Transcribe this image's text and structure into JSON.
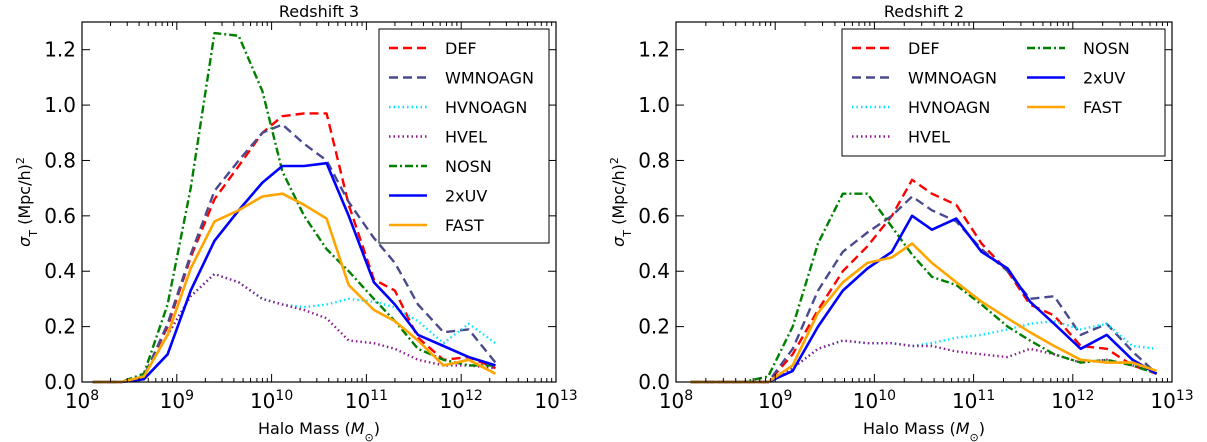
{
  "chart_data": [
    {
      "type": "line",
      "title": "Redshift 3",
      "xlabel": "Halo Mass ($M_{\\odot}$)",
      "ylabel": "$\\sigma_{\\rm T}$ (Mpc/h)$^2$",
      "xscale": "log",
      "xlim": [
        100000000.0,
        10000000000000.0
      ],
      "ylim": [
        0.0,
        1.3
      ],
      "xticks": [
        "10^8",
        "10^9",
        "10^10",
        "10^11",
        "10^12",
        "10^13"
      ],
      "yticks": [
        "0.0",
        "0.2",
        "0.4",
        "0.6",
        "0.8",
        "1.0",
        "1.2"
      ],
      "legend_position": "upper-right",
      "legend_columns": 1,
      "series": [
        {
          "name": "DEF",
          "color": "#ff0000",
          "style": "dashed",
          "x": [
            130000000.0,
            260000000.0,
            450000000.0,
            800000000.0,
            1400000000.0,
            2500000000.0,
            4500000000.0,
            8000000000.0,
            13000000000.0,
            22000000000.0,
            38000000000.0,
            65000000000.0,
            120000000000.0,
            200000000000.0,
            350000000000.0,
            650000000000.0,
            1200000000000.0,
            2300000000000.0
          ],
          "y": [
            0.0,
            0.0,
            0.02,
            0.2,
            0.45,
            0.66,
            0.78,
            0.9,
            0.96,
            0.97,
            0.97,
            0.64,
            0.37,
            0.33,
            0.16,
            0.08,
            0.09,
            0.05
          ]
        },
        {
          "name": "WMNOAGN",
          "color": "#4a4a8f",
          "style": "dashed",
          "x": [
            130000000.0,
            260000000.0,
            450000000.0,
            800000000.0,
            1400000000.0,
            2500000000.0,
            4500000000.0,
            8000000000.0,
            13000000000.0,
            22000000000.0,
            38000000000.0,
            65000000000.0,
            120000000000.0,
            200000000000.0,
            350000000000.0,
            650000000000.0,
            1200000000000.0,
            2300000000000.0
          ],
          "y": [
            0.0,
            0.0,
            0.02,
            0.21,
            0.46,
            0.69,
            0.8,
            0.9,
            0.93,
            0.86,
            0.8,
            0.65,
            0.52,
            0.43,
            0.28,
            0.18,
            0.19,
            0.07
          ]
        },
        {
          "name": "HVNOAGN",
          "color": "#00e5ff",
          "style": "dotted",
          "x": [
            130000000.0,
            260000000.0,
            450000000.0,
            800000000.0,
            1400000000.0,
            2500000000.0,
            4500000000.0,
            8000000000.0,
            13000000000.0,
            22000000000.0,
            38000000000.0,
            65000000000.0,
            120000000000.0,
            200000000000.0,
            350000000000.0,
            650000000000.0,
            1200000000000.0,
            2300000000000.0
          ],
          "y": [
            0.0,
            0.0,
            0.02,
            0.17,
            0.31,
            0.39,
            0.36,
            0.3,
            0.28,
            0.27,
            0.28,
            0.3,
            0.29,
            0.27,
            0.22,
            0.14,
            0.21,
            0.14
          ]
        },
        {
          "name": "HVEL",
          "color": "#8b1a8b",
          "style": "dotted",
          "x": [
            130000000.0,
            260000000.0,
            450000000.0,
            800000000.0,
            1400000000.0,
            2500000000.0,
            4500000000.0,
            8000000000.0,
            13000000000.0,
            22000000000.0,
            38000000000.0,
            65000000000.0,
            120000000000.0,
            200000000000.0,
            350000000000.0,
            650000000000.0,
            1200000000000.0,
            2300000000000.0
          ],
          "y": [
            0.0,
            0.0,
            0.02,
            0.17,
            0.31,
            0.39,
            0.36,
            0.3,
            0.28,
            0.26,
            0.23,
            0.15,
            0.14,
            0.12,
            0.08,
            0.06,
            0.06,
            0.05
          ]
        },
        {
          "name": "NOSN",
          "color": "#008000",
          "style": "dashdot",
          "x": [
            130000000.0,
            260000000.0,
            450000000.0,
            800000000.0,
            1400000000.0,
            2500000000.0,
            4500000000.0,
            8000000000.0,
            13000000000.0,
            22000000000.0,
            38000000000.0,
            65000000000.0,
            120000000000.0,
            200000000000.0,
            350000000000.0,
            650000000000.0,
            1200000000000.0,
            2300000000000.0
          ],
          "y": [
            0.0,
            0.0,
            0.03,
            0.28,
            0.7,
            1.26,
            1.25,
            1.05,
            0.76,
            0.6,
            0.48,
            0.4,
            0.3,
            0.22,
            0.12,
            0.08,
            0.06,
            0.06
          ]
        },
        {
          "name": "2xUV",
          "color": "#0000ff",
          "style": "solid",
          "x": [
            130000000.0,
            260000000.0,
            450000000.0,
            800000000.0,
            1400000000.0,
            2500000000.0,
            4500000000.0,
            8000000000.0,
            13000000000.0,
            22000000000.0,
            38000000000.0,
            65000000000.0,
            120000000000.0,
            200000000000.0,
            350000000000.0,
            650000000000.0,
            1200000000000.0,
            2300000000000.0
          ],
          "y": [
            0.0,
            0.0,
            0.01,
            0.1,
            0.33,
            0.51,
            0.62,
            0.72,
            0.78,
            0.78,
            0.79,
            0.6,
            0.36,
            0.28,
            0.17,
            0.13,
            0.09,
            0.06
          ]
        },
        {
          "name": "FAST",
          "color": "#ffa500",
          "style": "solid",
          "x": [
            130000000.0,
            260000000.0,
            450000000.0,
            800000000.0,
            1400000000.0,
            2500000000.0,
            4500000000.0,
            8000000000.0,
            13000000000.0,
            22000000000.0,
            38000000000.0,
            65000000000.0,
            120000000000.0,
            200000000000.0,
            350000000000.0,
            650000000000.0,
            1200000000000.0,
            2300000000000.0
          ],
          "y": [
            0.0,
            0.0,
            0.02,
            0.17,
            0.41,
            0.58,
            0.62,
            0.67,
            0.68,
            0.64,
            0.59,
            0.35,
            0.26,
            0.22,
            0.15,
            0.06,
            0.08,
            0.03
          ]
        }
      ]
    },
    {
      "type": "line",
      "title": "Redshift 2",
      "xlabel": "Halo Mass ($M_{\\odot}$)",
      "ylabel": "$\\sigma_{\\rm T}$ (Mpc/h)$^2$",
      "xscale": "log",
      "xlim": [
        100000000.0,
        10000000000000.0
      ],
      "ylim": [
        0.0,
        1.3
      ],
      "xticks": [
        "10^8",
        "10^9",
        "10^10",
        "10^11",
        "10^12",
        "10^13"
      ],
      "yticks": [
        "0.0",
        "0.2",
        "0.4",
        "0.6",
        "0.8",
        "1.0",
        "1.2"
      ],
      "legend_position": "upper-right",
      "legend_columns": 2,
      "series": [
        {
          "name": "DEF",
          "color": "#ff0000",
          "style": "dashed",
          "x": [
            140000000.0,
            260000000.0,
            470000000.0,
            850000000.0,
            1500000000.0,
            2700000000.0,
            4800000000.0,
            8500000000.0,
            15000000000.0,
            24000000000.0,
            38000000000.0,
            67000000000.0,
            120000000000.0,
            220000000000.0,
            370000000000.0,
            650000000000.0,
            1200000000000.0,
            2200000000000.0,
            4000000000000.0,
            7000000000000.0
          ],
          "y": [
            0.0,
            0.0,
            0.0,
            0.0,
            0.1,
            0.26,
            0.4,
            0.49,
            0.6,
            0.73,
            0.68,
            0.64,
            0.5,
            0.4,
            0.28,
            0.24,
            0.13,
            0.12,
            0.06,
            0.03
          ]
        },
        {
          "name": "WMNOAGN",
          "color": "#4a4a8f",
          "style": "dashed",
          "x": [
            140000000.0,
            260000000.0,
            470000000.0,
            850000000.0,
            1500000000.0,
            2700000000.0,
            4800000000.0,
            8500000000.0,
            15000000000.0,
            24000000000.0,
            38000000000.0,
            67000000000.0,
            120000000000.0,
            220000000000.0,
            370000000000.0,
            650000000000.0,
            1200000000000.0,
            2200000000000.0,
            4000000000000.0,
            7000000000000.0
          ],
          "y": [
            0.0,
            0.0,
            0.0,
            0.0,
            0.12,
            0.33,
            0.47,
            0.54,
            0.6,
            0.67,
            0.62,
            0.58,
            0.48,
            0.4,
            0.3,
            0.31,
            0.17,
            0.21,
            0.11,
            0.03
          ]
        },
        {
          "name": "HVNOAGN",
          "color": "#00e5ff",
          "style": "dotted",
          "x": [
            140000000.0,
            260000000.0,
            470000000.0,
            850000000.0,
            1500000000.0,
            2700000000.0,
            4800000000.0,
            8500000000.0,
            15000000000.0,
            24000000000.0,
            38000000000.0,
            67000000000.0,
            120000000000.0,
            220000000000.0,
            370000000000.0,
            650000000000.0,
            1200000000000.0,
            2200000000000.0,
            4000000000000.0,
            7000000000000.0
          ],
          "y": [
            0.0,
            0.0,
            0.0,
            0.0,
            0.05,
            0.12,
            0.15,
            0.14,
            0.14,
            0.13,
            0.14,
            0.16,
            0.17,
            0.19,
            0.21,
            0.22,
            0.19,
            0.21,
            0.13,
            0.12
          ]
        },
        {
          "name": "HVEL",
          "color": "#8b1a8b",
          "style": "dotted",
          "x": [
            140000000.0,
            260000000.0,
            470000000.0,
            850000000.0,
            1500000000.0,
            2700000000.0,
            4800000000.0,
            8500000000.0,
            15000000000.0,
            24000000000.0,
            38000000000.0,
            67000000000.0,
            120000000000.0,
            220000000000.0,
            370000000000.0,
            650000000000.0,
            1200000000000.0,
            2200000000000.0,
            4000000000000.0,
            7000000000000.0
          ],
          "y": [
            0.0,
            0.0,
            0.0,
            0.0,
            0.05,
            0.12,
            0.15,
            0.14,
            0.14,
            0.13,
            0.13,
            0.11,
            0.1,
            0.09,
            0.12,
            0.1,
            0.07,
            0.08,
            0.06,
            0.04
          ]
        },
        {
          "name": "NOSN",
          "color": "#008000",
          "style": "dashdot",
          "x": [
            140000000.0,
            260000000.0,
            470000000.0,
            850000000.0,
            1500000000.0,
            2700000000.0,
            4800000000.0,
            8500000000.0,
            15000000000.0,
            24000000000.0,
            38000000000.0,
            67000000000.0,
            120000000000.0,
            220000000000.0,
            370000000000.0,
            650000000000.0,
            1200000000000.0,
            2200000000000.0,
            4000000000000.0,
            7000000000000.0
          ],
          "y": [
            0.0,
            0.0,
            0.0,
            0.02,
            0.2,
            0.5,
            0.68,
            0.68,
            0.56,
            0.46,
            0.38,
            0.35,
            0.28,
            0.2,
            0.15,
            0.1,
            0.07,
            0.08,
            0.06,
            0.03
          ]
        },
        {
          "name": "2xUV",
          "color": "#0000ff",
          "style": "solid",
          "x": [
            140000000.0,
            260000000.0,
            470000000.0,
            850000000.0,
            1500000000.0,
            2700000000.0,
            4800000000.0,
            8500000000.0,
            15000000000.0,
            24000000000.0,
            38000000000.0,
            67000000000.0,
            120000000000.0,
            220000000000.0,
            370000000000.0,
            650000000000.0,
            1200000000000.0,
            2200000000000.0,
            4000000000000.0,
            7000000000000.0
          ],
          "y": [
            0.0,
            0.0,
            0.0,
            0.0,
            0.04,
            0.2,
            0.33,
            0.41,
            0.47,
            0.6,
            0.55,
            0.59,
            0.47,
            0.41,
            0.29,
            0.21,
            0.12,
            0.17,
            0.08,
            0.03
          ]
        },
        {
          "name": "FAST",
          "color": "#ffa500",
          "style": "solid",
          "x": [
            140000000.0,
            260000000.0,
            470000000.0,
            850000000.0,
            1500000000.0,
            2700000000.0,
            4800000000.0,
            8500000000.0,
            15000000000.0,
            24000000000.0,
            38000000000.0,
            67000000000.0,
            120000000000.0,
            220000000000.0,
            370000000000.0,
            650000000000.0,
            1200000000000.0,
            2200000000000.0,
            4000000000000.0,
            7000000000000.0
          ],
          "y": [
            0.0,
            0.0,
            0.0,
            0.0,
            0.06,
            0.25,
            0.36,
            0.43,
            0.45,
            0.5,
            0.43,
            0.36,
            0.29,
            0.23,
            0.18,
            0.13,
            0.08,
            0.07,
            0.07,
            0.04
          ]
        }
      ]
    }
  ]
}
